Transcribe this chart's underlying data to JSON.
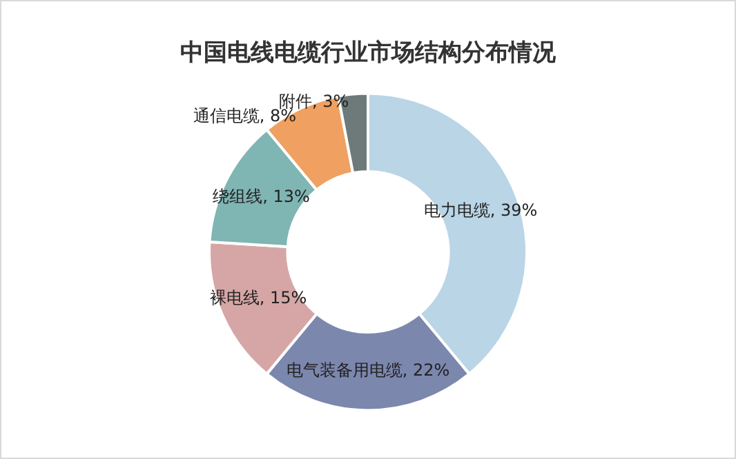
{
  "chart_data": {
    "type": "donut",
    "title": "中国电线电缆行业市场结构分布情况",
    "categories": [
      "电力电缆",
      "电气装备用电缆",
      "裸电线",
      "绕组线",
      "通信电缆",
      "附件"
    ],
    "values": [
      39,
      22,
      15,
      13,
      8,
      3
    ],
    "value_labels": [
      "39%",
      "22%",
      "15%",
      "13%",
      "8%",
      "3%"
    ],
    "colors": [
      "#b9d5e6",
      "#7c87ae",
      "#d6a6a6",
      "#7fb5b3",
      "#f0a060",
      "#6e7a7a"
    ],
    "legend": false
  }
}
